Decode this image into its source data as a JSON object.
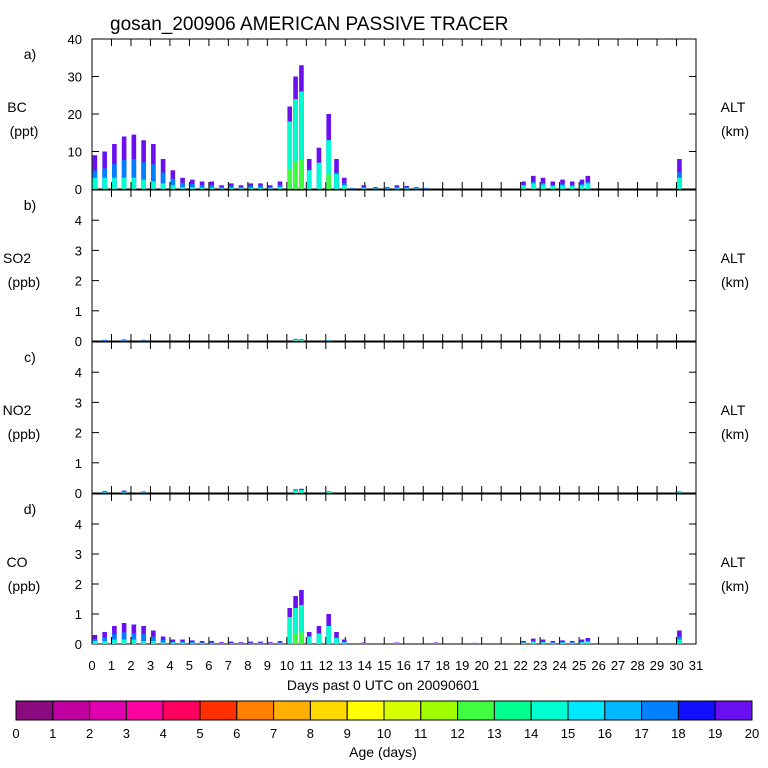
{
  "chart_data": {
    "type": "bar",
    "title": "gosan_200906 AMERICAN PASSIVE TRACER",
    "xlabel": "Days past 0 UTC on 20090601",
    "xlim": [
      0,
      31
    ],
    "x_ticks": [
      "0",
      "1",
      "2",
      "3",
      "4",
      "5",
      "6",
      "7",
      "8",
      "9",
      "10",
      "11",
      "12",
      "13",
      "14",
      "15",
      "16",
      "17",
      "18",
      "19",
      "20",
      "21",
      "22",
      "23",
      "24",
      "25",
      "26",
      "27",
      "28",
      "29",
      "30",
      "31"
    ],
    "stack_by": "Age (days)",
    "panels": [
      {
        "letter": "a)",
        "ylabel": "BC",
        "units": "(ppt)",
        "right_label": "ALT",
        "right_units": "(km)",
        "ylim": [
          0,
          40
        ],
        "yticks": [
          "0",
          "10",
          "20",
          "30",
          "40"
        ],
        "series": [
          {
            "day": 0.0,
            "total": 9,
            "young": 3
          },
          {
            "day": 0.5,
            "total": 10,
            "young": 3
          },
          {
            "day": 1.0,
            "total": 12,
            "young": 3
          },
          {
            "day": 1.5,
            "total": 14,
            "young": 3
          },
          {
            "day": 2.0,
            "total": 14.5,
            "young": 3
          },
          {
            "day": 2.5,
            "total": 13,
            "young": 2.5
          },
          {
            "day": 3.0,
            "total": 12,
            "young": 2
          },
          {
            "day": 3.5,
            "total": 8,
            "young": 1.5
          },
          {
            "day": 4.0,
            "total": 5,
            "young": 1
          },
          {
            "day": 4.5,
            "total": 3,
            "young": 0.5
          },
          {
            "day": 5.0,
            "total": 2.5,
            "young": 0.5
          },
          {
            "day": 5.5,
            "total": 2,
            "young": 0.3
          },
          {
            "day": 6.0,
            "total": 2,
            "young": 0.3
          },
          {
            "day": 6.5,
            "total": 1,
            "young": 0.2
          },
          {
            "day": 7.0,
            "total": 1.5,
            "young": 0.3
          },
          {
            "day": 7.5,
            "total": 1,
            "young": 0.2
          },
          {
            "day": 8.0,
            "total": 1.5,
            "young": 0.3
          },
          {
            "day": 8.5,
            "total": 1.5,
            "young": 0.3
          },
          {
            "day": 9.0,
            "total": 1,
            "young": 0.2
          },
          {
            "day": 9.5,
            "total": 2,
            "young": 0.5
          },
          {
            "day": 10.0,
            "total": 22,
            "young": 18
          },
          {
            "day": 10.3,
            "total": 30,
            "young": 24
          },
          {
            "day": 10.6,
            "total": 33,
            "young": 26
          },
          {
            "day": 11.0,
            "total": 8,
            "young": 5
          },
          {
            "day": 11.5,
            "total": 11,
            "young": 7
          },
          {
            "day": 12.0,
            "total": 20,
            "young": 13
          },
          {
            "day": 12.4,
            "total": 8,
            "young": 4
          },
          {
            "day": 12.8,
            "total": 3,
            "young": 1
          },
          {
            "day": 13.2,
            "total": 0.3,
            "young": 0.1
          },
          {
            "day": 13.8,
            "total": 1,
            "young": 0.2
          },
          {
            "day": 14.4,
            "total": 0.5,
            "young": 0.1
          },
          {
            "day": 15.0,
            "total": 0.5,
            "young": 0.1
          },
          {
            "day": 15.5,
            "total": 1,
            "young": 0.2
          },
          {
            "day": 16.0,
            "total": 0.8,
            "young": 0.2
          },
          {
            "day": 16.5,
            "total": 0.5,
            "young": 0.1
          },
          {
            "day": 17.0,
            "total": 0.3,
            "young": 0.1
          },
          {
            "day": 22.0,
            "total": 2,
            "young": 1
          },
          {
            "day": 22.5,
            "total": 3.5,
            "young": 1.5
          },
          {
            "day": 23.0,
            "total": 3,
            "young": 1.2
          },
          {
            "day": 23.5,
            "total": 2,
            "young": 0.8
          },
          {
            "day": 24.0,
            "total": 2.5,
            "young": 1
          },
          {
            "day": 24.5,
            "total": 2,
            "young": 0.8
          },
          {
            "day": 25.0,
            "total": 2.5,
            "young": 1
          },
          {
            "day": 25.3,
            "total": 3.5,
            "young": 1.5
          },
          {
            "day": 30.0,
            "total": 8,
            "young": 3
          }
        ]
      },
      {
        "letter": "b)",
        "ylabel": "SO2",
        "units": "(ppb)",
        "right_label": "ALT",
        "right_units": "(km)",
        "ylim": [
          0,
          5
        ],
        "yticks": [
          "0",
          "1",
          "2",
          "3",
          "4"
        ],
        "series": [
          {
            "day": 0.5,
            "total": 0.04,
            "young": 0.01
          },
          {
            "day": 1.5,
            "total": 0.05,
            "young": 0.01
          },
          {
            "day": 2.5,
            "total": 0.04,
            "young": 0.01
          },
          {
            "day": 10.3,
            "total": 0.07,
            "young": 0.05
          },
          {
            "day": 10.6,
            "total": 0.06,
            "young": 0.04
          },
          {
            "day": 12.0,
            "total": 0.03,
            "young": 0.02
          }
        ]
      },
      {
        "letter": "c)",
        "ylabel": "NO2",
        "units": "(ppb)",
        "right_label": "ALT",
        "right_units": "(km)",
        "ylim": [
          0,
          5
        ],
        "yticks": [
          "0",
          "1",
          "2",
          "3",
          "4"
        ],
        "series": [
          {
            "day": 0.5,
            "total": 0.06,
            "young": 0.02
          },
          {
            "day": 1.5,
            "total": 0.08,
            "young": 0.02
          },
          {
            "day": 2.5,
            "total": 0.05,
            "young": 0.01
          },
          {
            "day": 10.3,
            "total": 0.12,
            "young": 0.09
          },
          {
            "day": 10.6,
            "total": 0.14,
            "young": 0.1
          },
          {
            "day": 12.0,
            "total": 0.05,
            "young": 0.03
          },
          {
            "day": 30.0,
            "total": 0.05,
            "young": 0.02
          }
        ]
      },
      {
        "letter": "d)",
        "ylabel": "CO",
        "units": "(ppb)",
        "right_label": "ALT",
        "right_units": "(km)",
        "ylim": [
          0,
          5
        ],
        "yticks": [
          "0",
          "1",
          "2",
          "3",
          "4"
        ],
        "series": [
          {
            "day": 0.0,
            "total": 0.3,
            "young": 0.1
          },
          {
            "day": 0.5,
            "total": 0.4,
            "young": 0.1
          },
          {
            "day": 1.0,
            "total": 0.6,
            "young": 0.15
          },
          {
            "day": 1.5,
            "total": 0.7,
            "young": 0.15
          },
          {
            "day": 2.0,
            "total": 0.65,
            "young": 0.15
          },
          {
            "day": 2.5,
            "total": 0.6,
            "young": 0.1
          },
          {
            "day": 3.0,
            "total": 0.45,
            "young": 0.1
          },
          {
            "day": 3.5,
            "total": 0.25,
            "young": 0.05
          },
          {
            "day": 4.0,
            "total": 0.15,
            "young": 0.05
          },
          {
            "day": 4.5,
            "total": 0.15,
            "young": 0.05
          },
          {
            "day": 5.0,
            "total": 0.12,
            "young": 0.04
          },
          {
            "day": 5.5,
            "total": 0.1,
            "young": 0.03
          },
          {
            "day": 6.0,
            "total": 0.1,
            "young": 0.03
          },
          {
            "day": 6.5,
            "total": 0.06,
            "young": 0.02
          },
          {
            "day": 7.0,
            "total": 0.08,
            "young": 0.02
          },
          {
            "day": 7.5,
            "total": 0.06,
            "young": 0.02
          },
          {
            "day": 8.0,
            "total": 0.08,
            "young": 0.02
          },
          {
            "day": 8.5,
            "total": 0.08,
            "young": 0.02
          },
          {
            "day": 9.0,
            "total": 0.06,
            "young": 0.02
          },
          {
            "day": 9.5,
            "total": 0.1,
            "young": 0.03
          },
          {
            "day": 10.0,
            "total": 1.2,
            "young": 0.9
          },
          {
            "day": 10.3,
            "total": 1.6,
            "young": 1.2
          },
          {
            "day": 10.6,
            "total": 1.8,
            "young": 1.3
          },
          {
            "day": 11.0,
            "total": 0.4,
            "young": 0.25
          },
          {
            "day": 11.5,
            "total": 0.6,
            "young": 0.35
          },
          {
            "day": 12.0,
            "total": 1.0,
            "young": 0.6
          },
          {
            "day": 12.4,
            "total": 0.4,
            "young": 0.2
          },
          {
            "day": 12.8,
            "total": 0.15,
            "young": 0.05
          },
          {
            "day": 13.8,
            "total": 0.05,
            "young": 0.02
          },
          {
            "day": 15.5,
            "total": 0.05,
            "young": 0.02
          },
          {
            "day": 17.5,
            "total": 0.05,
            "young": 0.02
          },
          {
            "day": 19.5,
            "total": 0.04,
            "young": 0.02
          },
          {
            "day": 22.0,
            "total": 0.1,
            "young": 0.05
          },
          {
            "day": 22.5,
            "total": 0.18,
            "young": 0.08
          },
          {
            "day": 23.0,
            "total": 0.15,
            "young": 0.06
          },
          {
            "day": 23.5,
            "total": 0.1,
            "young": 0.04
          },
          {
            "day": 24.0,
            "total": 0.12,
            "young": 0.05
          },
          {
            "day": 24.5,
            "total": 0.1,
            "young": 0.04
          },
          {
            "day": 25.0,
            "total": 0.15,
            "young": 0.06
          },
          {
            "day": 25.3,
            "total": 0.2,
            "young": 0.08
          },
          {
            "day": 30.0,
            "total": 0.45,
            "young": 0.15
          }
        ]
      }
    ],
    "colorbar": {
      "label": "Age (days)",
      "tick_labels": [
        "0",
        "1",
        "2",
        "3",
        "4",
        "5",
        "6",
        "7",
        "8",
        "9",
        "10",
        "11",
        "12",
        "13",
        "14",
        "15",
        "16",
        "17",
        "18",
        "19",
        "20"
      ],
      "colors": [
        "#8b0a80",
        "#c000a0",
        "#e000b0",
        "#ff00a0",
        "#ff0060",
        "#ff3000",
        "#ff8000",
        "#ffb000",
        "#ffd800",
        "#ffff00",
        "#d8ff00",
        "#a0ff00",
        "#40ff40",
        "#00ff90",
        "#00ffd0",
        "#00e8ff",
        "#00b8ff",
        "#0080ff",
        "#1010ff",
        "#6a10f0"
      ]
    }
  }
}
